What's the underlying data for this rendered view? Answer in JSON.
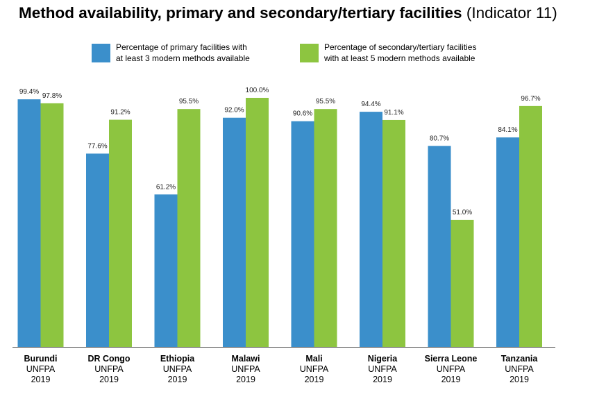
{
  "title": {
    "main": "Method availability, primary and secondary/tertiary facilities",
    "sub": "(Indicator 11)"
  },
  "colors": {
    "primary": "#3B8FCB",
    "secondary": "#8DC540"
  },
  "legend": {
    "primary": {
      "line1": "Percentage of primary facilities with",
      "line2": "at least 3 modern methods available"
    },
    "secondary": {
      "line1": "Percentage of secondary/tertiary facilities",
      "line2": "with at least 5 modern methods available"
    }
  },
  "chart_data": {
    "type": "bar",
    "categories": [
      "Burundi",
      "DR Congo",
      "Ethiopia",
      "Malawi",
      "Mali",
      "Nigeria",
      "Sierra Leone",
      "Tanzania"
    ],
    "category_sublabels": [
      "UNFPA",
      "2019"
    ],
    "ylim": [
      0,
      100
    ],
    "series": [
      {
        "name": "Percentage of primary facilities with at least 3 modern methods available",
        "values": [
          99.4,
          77.6,
          61.2,
          92.0,
          90.6,
          94.4,
          80.7,
          84.1
        ],
        "labels": [
          "99.4%",
          "77.6%",
          "61.2%",
          "92.0%",
          "90.6%",
          "94.4%",
          "80.7%",
          "84.1%"
        ]
      },
      {
        "name": "Percentage of secondary/tertiary facilities with at least 5 modern methods available",
        "values": [
          97.8,
          91.2,
          95.5,
          100.0,
          95.5,
          91.1,
          51.0,
          96.7
        ],
        "labels": [
          "97.8%",
          "91.2%",
          "95.5%",
          "100.0%",
          "95.5%",
          "91.1%",
          "51.0%",
          "96.7%"
        ]
      }
    ],
    "grid": false,
    "legend_position": "top"
  }
}
